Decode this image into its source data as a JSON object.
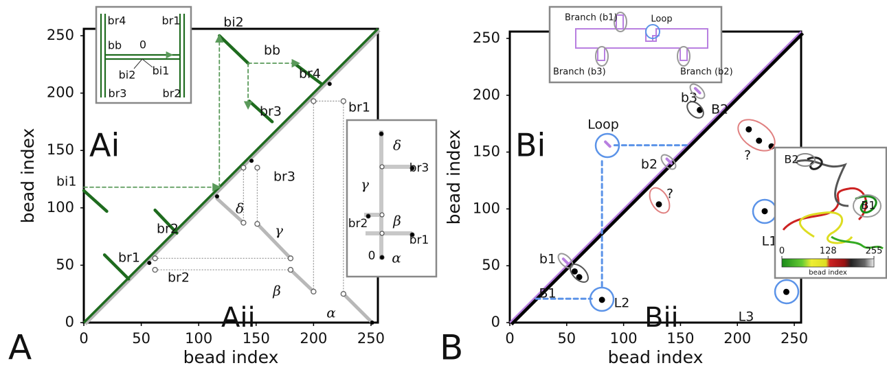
{
  "chart_data": [
    {
      "type": "contact-map",
      "panel": "A",
      "subpanels": [
        "Ai",
        "Aii"
      ],
      "xlabel": "bead index",
      "ylabel": "bead index",
      "xlim": [
        0,
        256
      ],
      "ylim": [
        0,
        256
      ],
      "xticks": [
        0,
        50,
        100,
        150,
        200,
        250
      ],
      "yticks": [
        0,
        50,
        100,
        150,
        200,
        250
      ],
      "diagonal_colors": [
        "#b5b5b5",
        "#1e6b1e"
      ],
      "layers": [
        {
          "style": "tree",
          "color": "#b8b8b8",
          "segments": [
            {
              "x": [
                116,
                139
              ],
              "y": [
                108,
                87
              ]
            },
            {
              "x": [
                151,
                180
              ],
              "y": [
                86,
                56
              ]
            },
            {
              "x": [
                180,
                200
              ],
              "y": [
                46,
                27
              ]
            },
            {
              "x": [
                226,
                251
              ],
              "y": [
                25,
                0
              ]
            }
          ]
        },
        {
          "style": "dotted",
          "color": "#999999",
          "segments": [
            {
              "x": [
                139,
                139
              ],
              "y": [
                135,
                87
              ]
            },
            {
              "x": [
                151,
                151
              ],
              "y": [
                135,
                86
              ]
            },
            {
              "x": [
                62,
                180
              ],
              "y": [
                56,
                56
              ]
            },
            {
              "x": [
                62,
                180
              ],
              "y": [
                46,
                46
              ]
            },
            {
              "x": [
                200,
                200
              ],
              "y": [
                193,
                27
              ]
            },
            {
              "x": [
                200,
                226
              ],
              "y": [
                193,
                193
              ]
            },
            {
              "x": [
                226,
                226
              ],
              "y": [
                193,
                25
              ]
            }
          ]
        },
        {
          "style": "branch",
          "color": "#1e6b1e",
          "segments": [
            {
              "x": [
                0,
                20
              ],
              "y": [
                115,
                97
              ]
            },
            {
              "x": [
                18,
                39
              ],
              "y": [
                59,
                38
              ]
            },
            {
              "x": [
                62,
                81
              ],
              "y": [
                98,
                78
              ]
            },
            {
              "x": [
                118,
                143
              ],
              "y": [
                250,
                226
              ]
            },
            {
              "x": [
                144,
                164
              ],
              "y": [
                193,
                175
              ]
            },
            {
              "x": [
                183,
                207
              ],
              "y": [
                226,
                208
              ]
            }
          ]
        },
        {
          "style": "arrow",
          "color": "#5a9a5a",
          "segments": [
            {
              "x": [
                0,
                118
              ],
              "y": [
                118,
                118
              ]
            },
            {
              "x": [
                118,
                118
              ],
              "y": [
                118,
                250
              ]
            },
            {
              "x": [
                143,
                187
              ],
              "y": [
                226,
                226
              ]
            },
            {
              "x": [
                143,
                143
              ],
              "y": [
                226,
                187
              ]
            }
          ]
        }
      ],
      "points": {
        "x": [
          116,
          146,
          214,
          57,
          251
        ],
        "y": [
          110,
          141,
          208,
          52,
          0
        ]
      },
      "open_points": {
        "x": [
          139,
          151,
          139,
          151,
          180,
          180,
          200,
          200,
          226,
          226,
          62,
          62
        ],
        "y": [
          135,
          135,
          87,
          86,
          56,
          46,
          27,
          193,
          193,
          25,
          56,
          46
        ]
      },
      "annotations": [
        "bi1",
        "br1",
        "br2",
        "bi2",
        "bb",
        "br3",
        "br4",
        "br1",
        "br2",
        "br3",
        "δ",
        "γ",
        "β",
        "α"
      ],
      "insets": [
        {
          "texts": [
            "br4",
            "br1",
            "bb",
            "0",
            "bi2",
            "bi1",
            "br3",
            "br2"
          ]
        },
        {
          "texts": [
            "δ",
            "γ",
            "br3",
            "br2",
            "β",
            "br1",
            "0",
            "α"
          ]
        }
      ]
    },
    {
      "type": "contact-map",
      "panel": "B",
      "subpanels": [
        "Bi",
        "Bii"
      ],
      "xlabel": "bead index",
      "ylabel": "bead index",
      "xlim": [
        0,
        256
      ],
      "ylim": [
        0,
        256
      ],
      "xticks": [
        0,
        50,
        100,
        150,
        200,
        250
      ],
      "yticks": [
        0,
        50,
        100,
        150,
        200,
        250
      ],
      "diagonal_colors": [
        "#000000",
        "#b87fe0"
      ],
      "layers": [
        {
          "style": "dashed",
          "color": "#5b93e8",
          "segments": [
            {
              "x": [
                92,
                158
              ],
              "y": [
                156,
                156
              ]
            },
            {
              "x": [
                81,
                81
              ],
              "y": [
                142,
                30
              ]
            },
            {
              "x": [
                23,
                72
              ],
              "y": [
                21,
                21
              ]
            }
          ]
        },
        {
          "style": "mark",
          "color": "#b87fe0",
          "segments": [
            {
              "x": [
                47,
                51
              ],
              "y": [
                56,
                52
              ]
            },
            {
              "x": [
                138,
                142
              ],
              "y": [
                144,
                140
              ]
            },
            {
              "x": [
                163,
                167
              ],
              "y": [
                206,
                202
              ]
            },
            {
              "x": [
                84,
                88
              ],
              "y": [
                159,
                155
              ]
            }
          ]
        }
      ],
      "points": {
        "x": [
          57,
          61,
          131,
          167,
          210,
          219,
          230,
          224,
          81,
          243
        ],
        "y": [
          45,
          40,
          104,
          187,
          170,
          160,
          155,
          98,
          20,
          27
        ]
      },
      "open_points": {
        "x": [],
        "y": []
      },
      "annotations": [
        "Loop",
        "b2",
        "?",
        "b1",
        "B1",
        "L2",
        "b3",
        "B2",
        "?",
        "L1",
        "L3"
      ],
      "insets": [
        {
          "texts": [
            "Branch (b1)",
            "Loop",
            "Branch (b3)",
            "Branch (b2)"
          ]
        },
        {
          "texts": [
            "B2",
            "B1"
          ],
          "colorbar": {
            "lim": [
              0,
              255
            ],
            "ticks": [
              0,
              128,
              255
            ],
            "label": "bead index"
          }
        }
      ]
    }
  ]
}
